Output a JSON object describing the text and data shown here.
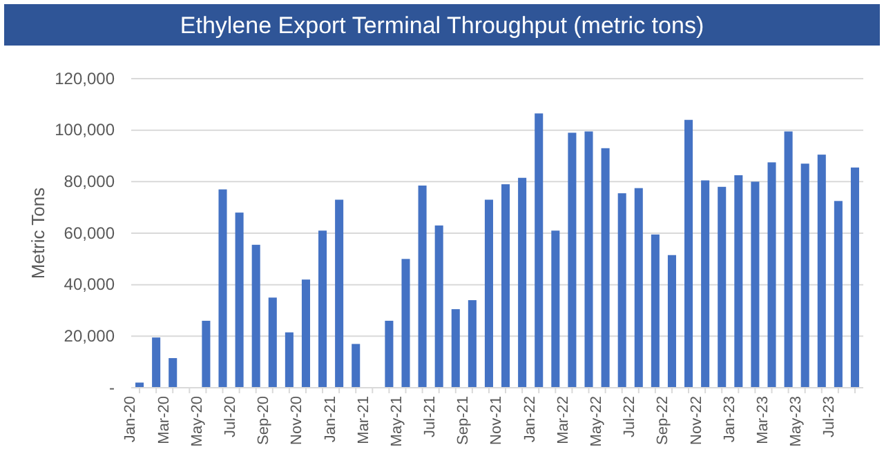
{
  "chart_data": {
    "type": "bar",
    "title": "Ethylene Export Terminal Throughput (metric tons)",
    "ylabel": "Metric Tons",
    "categories": [
      "Jan-20",
      null,
      "Mar-20",
      null,
      "May-20",
      null,
      "Jul-20",
      null,
      "Sep-20",
      null,
      "Nov-20",
      null,
      "Jan-21",
      null,
      "Mar-21",
      null,
      "May-21",
      null,
      "Jul-21",
      null,
      "Sep-21",
      null,
      "Nov-21",
      null,
      "Jan-22",
      null,
      "Mar-22",
      null,
      "May-22",
      null,
      "Jul-22",
      null,
      "Sep-22",
      null,
      "Nov-22",
      null,
      "Jan-23",
      null,
      "Mar-23",
      null,
      "May-23",
      null,
      "Jul-23",
      null
    ],
    "values": [
      2000,
      19500,
      11500,
      0,
      26000,
      77000,
      68000,
      55500,
      35000,
      21500,
      42000,
      61000,
      73000,
      17000,
      0,
      26000,
      50000,
      78500,
      63000,
      30500,
      34000,
      73000,
      79000,
      81500,
      106500,
      61000,
      99000,
      99500,
      93000,
      75500,
      77500,
      59500,
      51500,
      104000,
      80500,
      78000,
      82500,
      80000,
      87500,
      99500,
      87000,
      90500,
      72500,
      85500
    ],
    "color": "#4472c4",
    "ylim": [
      0,
      120000
    ],
    "yticks": [
      {
        "value": 0,
        "label": "-"
      },
      {
        "value": 20000,
        "label": "20,000"
      },
      {
        "value": 40000,
        "label": "40,000"
      },
      {
        "value": 60000,
        "label": "60,000"
      },
      {
        "value": 80000,
        "label": "80,000"
      },
      {
        "value": 100000,
        "label": "100,000"
      },
      {
        "value": 120000,
        "label": "120,000"
      }
    ],
    "grid": "y"
  }
}
